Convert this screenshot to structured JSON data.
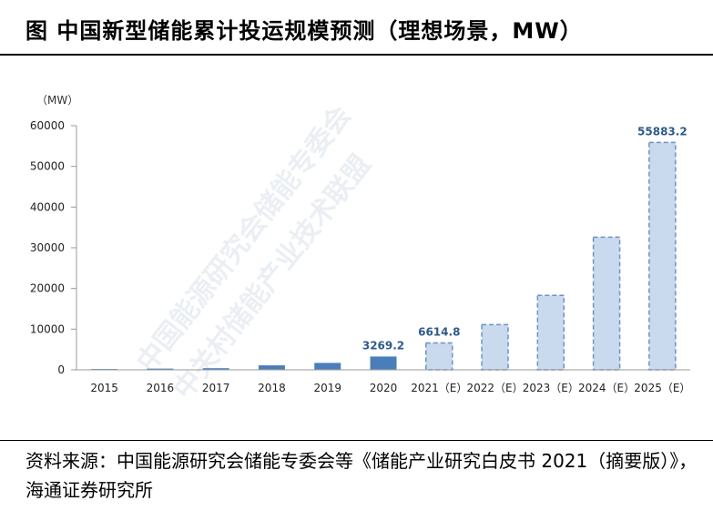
{
  "page": {
    "title": "图  中国新型储能累计投运规模预测（理想场景，MW）",
    "source": "资料来源：中国能源研究会储能专委会等《储能产业研究白皮书 2021（摘要版）》，海通证券研究所",
    "watermark_lines": [
      "中国能源研究会储能专委会",
      "中关村储能产业技术联盟"
    ]
  },
  "chart_data": {
    "type": "bar",
    "title": "",
    "unit_label": "（MW）",
    "categories": [
      "2015",
      "2016",
      "2017",
      "2018",
      "2019",
      "2020",
      "2021（E）",
      "2022（E）",
      "2023（E）",
      "2024（E）",
      "2025（E）"
    ],
    "values": [
      200,
      300,
      400,
      1100,
      1700,
      3269.2,
      6614.8,
      11100,
      18300,
      32600,
      55883.2
    ],
    "estimated": [
      false,
      false,
      false,
      false,
      false,
      false,
      true,
      true,
      true,
      true,
      true
    ],
    "data_labels": {
      "5": "3269.2",
      "6": "6614.8",
      "10": "55883.2"
    },
    "ylim": [
      0,
      60000
    ],
    "yticks": [
      0,
      10000,
      20000,
      30000,
      40000,
      50000,
      60000
    ],
    "colors": {
      "actual": "#4a7ebb",
      "estimated_fill": "#c9d9ee",
      "estimated_border": "#6f93c2",
      "label": "#2e5a8a"
    }
  }
}
